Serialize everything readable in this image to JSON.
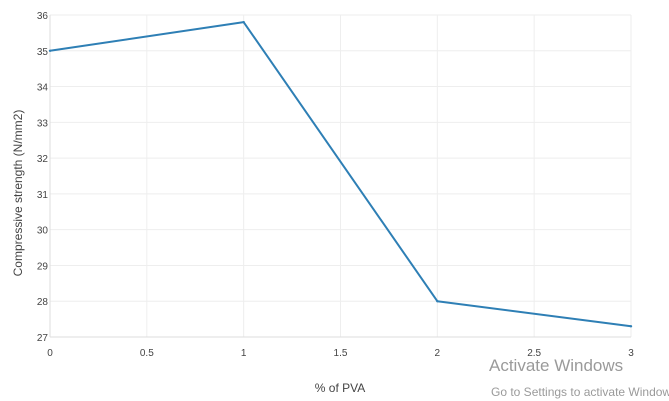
{
  "chart_data": {
    "type": "line",
    "title": "",
    "xlabel": "% of PVA",
    "ylabel": "Compressive strength (N/mm2)",
    "x": [
      0,
      1,
      2,
      3
    ],
    "series": [
      {
        "values": [
          35.0,
          35.8,
          28.0,
          27.3
        ],
        "color": "#2e7fb5"
      }
    ],
    "xlim": [
      0,
      3
    ],
    "ylim": [
      27,
      36
    ],
    "xticks": [
      "0",
      "0.5",
      "1",
      "1.5",
      "2",
      "2.5",
      "3"
    ],
    "xtick_values": [
      0,
      0.5,
      1,
      1.5,
      2,
      2.5,
      3
    ],
    "yticks": [
      "27",
      "28",
      "29",
      "30",
      "31",
      "32",
      "33",
      "34",
      "35",
      "36"
    ],
    "ytick_values": [
      27,
      28,
      29,
      30,
      31,
      32,
      33,
      34,
      35,
      36
    ],
    "grid": true,
    "legend": "none"
  },
  "watermark": {
    "title": "Activate Windows",
    "subtitle": "Go to Settings to activate Windows."
  }
}
